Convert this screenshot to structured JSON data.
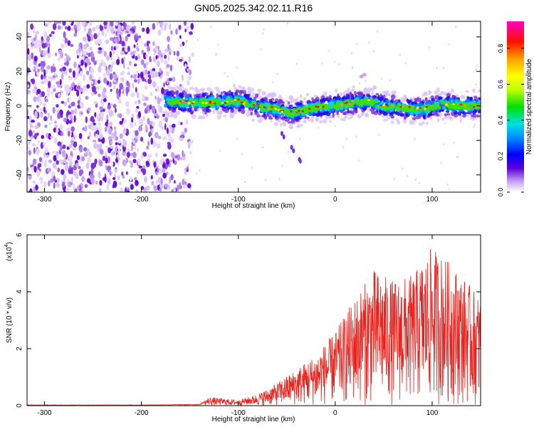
{
  "title": "GN05.2025.342.02.11.R16",
  "chart_data": [
    {
      "type": "heatmap",
      "xlabel": "Height of straight line (km)",
      "ylabel": "Frequency (Hz)",
      "xlim": [
        -318,
        150
      ],
      "ylim": [
        -50,
        49
      ],
      "xticks": [
        -300,
        -200,
        -100,
        0,
        100
      ],
      "yticks": [
        -40,
        -20,
        0,
        20,
        40
      ],
      "colorbar": {
        "label": "Normalized spectral amplitude",
        "range": [
          0,
          0.95
        ],
        "ticks": [
          0.0,
          0.2,
          0.4,
          0.6,
          0.8
        ]
      },
      "signal_track": {
        "x": [
          -175,
          -150,
          -125,
          -100,
          -80,
          -60,
          -45,
          -35,
          -20,
          0,
          20,
          35,
          50,
          70,
          90,
          110,
          130,
          150
        ],
        "y": [
          3,
          2,
          2,
          3,
          0,
          -2,
          -4,
          -3,
          -1,
          0,
          2,
          3,
          0,
          -1,
          -2,
          1,
          0,
          0
        ]
      },
      "noise_region_x": [
        -318,
        -155
      ]
    },
    {
      "type": "line",
      "xlabel": "Height of straight line (km)",
      "ylabel": "SNR (10 * v/v)",
      "y_multiplier": "(x10",
      "y_multiplier_exp": "4",
      "xlim": [
        -318,
        150
      ],
      "ylim": [
        0,
        6
      ],
      "xticks": [
        -300,
        -200,
        -100,
        0,
        100
      ],
      "yticks": [
        0,
        2,
        4,
        6
      ],
      "series": [
        {
          "color": "#e8231e",
          "envelope_x": [
            -318,
            -200,
            -140,
            -130,
            -100,
            -80,
            -60,
            -40,
            -20,
            0,
            20,
            40,
            60,
            80,
            100,
            120,
            140,
            150
          ],
          "envelope_y": [
            0.03,
            0.03,
            0.05,
            0.3,
            0.2,
            0.4,
            0.8,
            1.3,
            1.8,
            2.6,
            3.8,
            4.8,
            4.4,
            4.6,
            5.6,
            5.0,
            4.2,
            3.8
          ]
        }
      ]
    }
  ]
}
